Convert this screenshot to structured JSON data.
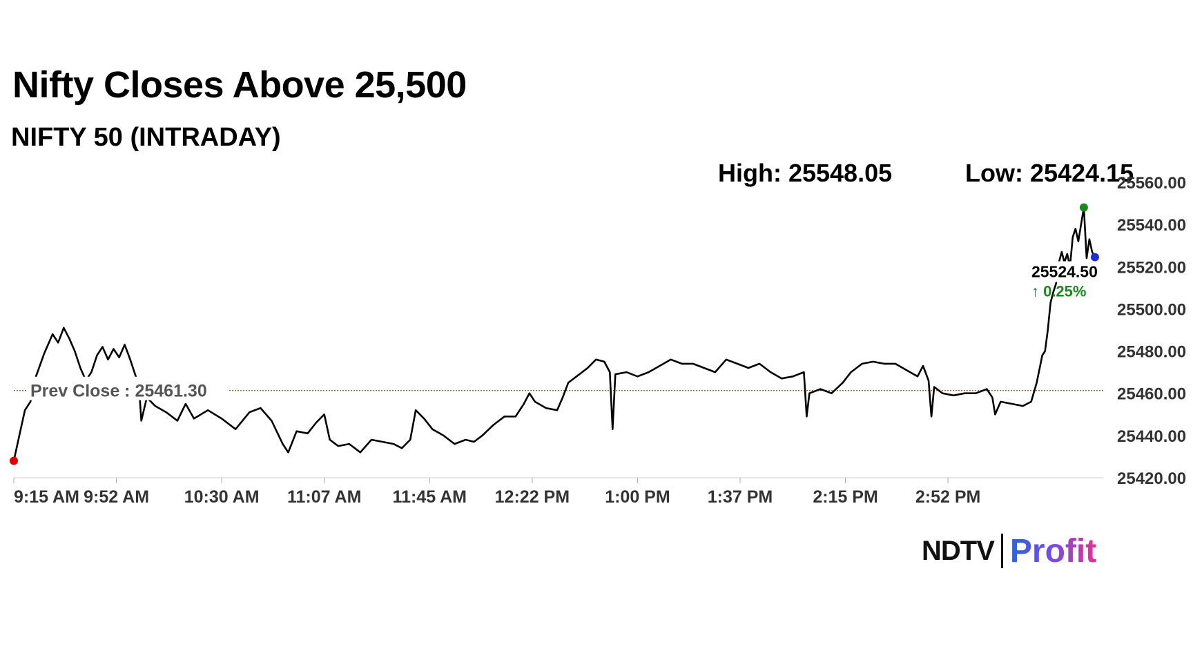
{
  "title": "Nifty Closes Above 25,500",
  "subtitle": "NIFTY 50 (INTRADAY)",
  "stats": {
    "high_label": "High: 25548.05",
    "low_label": "Low: 25424.15"
  },
  "logo": {
    "ndtv": "NDTV",
    "profit": "Profit"
  },
  "chart_data": {
    "type": "line",
    "title": "NIFTY 50 (INTRADAY)",
    "xlabel": "",
    "ylabel": "",
    "ylim": [
      25420,
      25560
    ],
    "y_ticks": [
      "25420.00",
      "25440.00",
      "25460.00",
      "25480.00",
      "25500.00",
      "25520.00",
      "25540.00",
      "25560.00"
    ],
    "x_ticks": [
      "9:15 AM",
      "9:52 AM",
      "10:30 AM",
      "11:07 AM",
      "11:45 AM",
      "12:22 PM",
      "1:00 PM",
      "1:37 PM",
      "2:15 PM",
      "2:52 PM"
    ],
    "x_range": [
      "9:15 AM",
      "3:30 PM"
    ],
    "grid": false,
    "prev_close": 25461.3,
    "prev_close_label": "Prev Close : 25461.30",
    "last_value_label": "25524.50",
    "change_label": "↑ 0.25%",
    "high": 25548.05,
    "low": 25424.15,
    "colors": {
      "line": "#000000",
      "prev_close_line": "#c0392b",
      "open_marker": "#e00000",
      "high_marker": "#1a8a1a",
      "last_marker": "#1f2fd6",
      "change_up": "#1a8a1a"
    },
    "series": [
      {
        "points": [
          [
            "9:15",
            25428
          ],
          [
            "9:17",
            25440
          ],
          [
            "9:19",
            25452
          ],
          [
            "9:21",
            25456
          ],
          [
            "9:23",
            25468
          ],
          [
            "9:26",
            25479
          ],
          [
            "9:29",
            25488
          ],
          [
            "9:31",
            25484
          ],
          [
            "9:33",
            25491
          ],
          [
            "9:35",
            25486
          ],
          [
            "9:37",
            25480
          ],
          [
            "9:39",
            25472
          ],
          [
            "9:41",
            25466
          ],
          [
            "9:43",
            25470
          ],
          [
            "9:45",
            25478
          ],
          [
            "9:47",
            25482
          ],
          [
            "9:49",
            25476
          ],
          [
            "9:51",
            25481
          ],
          [
            "9:53",
            25477
          ],
          [
            "9:55",
            25483
          ],
          [
            "9:57",
            25476
          ],
          [
            "9:59",
            25468
          ],
          [
            "10:00",
            25466
          ],
          [
            "10:01",
            25447
          ],
          [
            "10:03",
            25458
          ],
          [
            "10:06",
            25454
          ],
          [
            "10:10",
            25451
          ],
          [
            "10:14",
            25447
          ],
          [
            "10:17",
            25455
          ],
          [
            "10:20",
            25448
          ],
          [
            "10:25",
            25452
          ],
          [
            "10:30",
            25448
          ],
          [
            "10:35",
            25443
          ],
          [
            "10:40",
            25451
          ],
          [
            "10:44",
            25453
          ],
          [
            "10:48",
            25447
          ],
          [
            "10:52",
            25436
          ],
          [
            "10:54",
            25432
          ],
          [
            "10:57",
            25442
          ],
          [
            "11:01",
            25441
          ],
          [
            "11:04",
            25446
          ],
          [
            "11:07",
            25450
          ],
          [
            "11:09",
            25438
          ],
          [
            "11:12",
            25435
          ],
          [
            "11:16",
            25436
          ],
          [
            "11:20",
            25432
          ],
          [
            "11:24",
            25438
          ],
          [
            "11:28",
            25437
          ],
          [
            "11:32",
            25436
          ],
          [
            "11:35",
            25434
          ],
          [
            "11:38",
            25438
          ],
          [
            "11:40",
            25452
          ],
          [
            "11:43",
            25448
          ],
          [
            "11:46",
            25443
          ],
          [
            "11:50",
            25440
          ],
          [
            "11:54",
            25436
          ],
          [
            "11:58",
            25438
          ],
          [
            "12:01",
            25437
          ],
          [
            "12:04",
            25440
          ],
          [
            "12:08",
            25445
          ],
          [
            "12:12",
            25449
          ],
          [
            "12:16",
            25449
          ],
          [
            "12:19",
            25455
          ],
          [
            "12:21",
            25460
          ],
          [
            "12:23",
            25456
          ],
          [
            "12:27",
            25453
          ],
          [
            "12:31",
            25452
          ],
          [
            "12:33",
            25458
          ],
          [
            "12:35",
            25465
          ],
          [
            "12:38",
            25468
          ],
          [
            "12:42",
            25472
          ],
          [
            "12:45",
            25476
          ],
          [
            "12:48",
            25475
          ],
          [
            "12:50",
            25470
          ],
          [
            "12:51",
            25443
          ],
          [
            "12:52",
            25469
          ],
          [
            "12:56",
            25470
          ],
          [
            "13:00",
            25468
          ],
          [
            "13:04",
            25470
          ],
          [
            "13:08",
            25473
          ],
          [
            "13:12",
            25476
          ],
          [
            "13:16",
            25474
          ],
          [
            "13:20",
            25474
          ],
          [
            "13:24",
            25472
          ],
          [
            "13:28",
            25470
          ],
          [
            "13:32",
            25476
          ],
          [
            "13:36",
            25474
          ],
          [
            "13:40",
            25472
          ],
          [
            "13:44",
            25474
          ],
          [
            "13:48",
            25470
          ],
          [
            "13:52",
            25467
          ],
          [
            "13:56",
            25468
          ],
          [
            "14:00",
            25470
          ],
          [
            "14:01",
            25449
          ],
          [
            "14:02",
            25460
          ],
          [
            "14:06",
            25462
          ],
          [
            "14:10",
            25460
          ],
          [
            "14:14",
            25465
          ],
          [
            "14:17",
            25470
          ],
          [
            "14:21",
            25474
          ],
          [
            "14:25",
            25475
          ],
          [
            "14:29",
            25474
          ],
          [
            "14:33",
            25474
          ],
          [
            "14:37",
            25471
          ],
          [
            "14:41",
            25468
          ],
          [
            "14:43",
            25473
          ],
          [
            "14:45",
            25466
          ],
          [
            "14:46",
            25449
          ],
          [
            "14:47",
            25463
          ],
          [
            "14:50",
            25460
          ],
          [
            "14:54",
            25459
          ],
          [
            "14:58",
            25460
          ],
          [
            "15:02",
            25460
          ],
          [
            "15:06",
            25462
          ],
          [
            "15:08",
            25458
          ],
          [
            "15:09",
            25450
          ],
          [
            "15:11",
            25456
          ],
          [
            "15:15",
            25455
          ],
          [
            "15:19",
            25454
          ],
          [
            "15:22",
            25456
          ],
          [
            "15:24",
            25465
          ],
          [
            "15:26",
            25478
          ],
          [
            "15:27",
            25480
          ],
          [
            "15:28",
            25490
          ],
          [
            "15:29",
            25503
          ],
          [
            "15:30",
            25508
          ]
        ]
      }
    ],
    "tail_points": [
      [
        "15:30",
        25508
      ],
      [
        "15:31",
        25512
      ],
      [
        "15:32",
        25522
      ],
      [
        "15:33",
        25527
      ],
      [
        "15:34",
        25522
      ],
      [
        "15:35",
        25526
      ],
      [
        "15:36",
        25520
      ],
      [
        "15:37",
        25534
      ],
      [
        "15:38",
        25538
      ],
      [
        "15:39",
        25532
      ],
      [
        "15:40",
        25540
      ],
      [
        "15:41",
        25548
      ],
      [
        "15:42",
        25524
      ],
      [
        "15:43",
        25533
      ],
      [
        "15:44",
        25527
      ],
      [
        "15:45",
        25524.5
      ]
    ]
  }
}
